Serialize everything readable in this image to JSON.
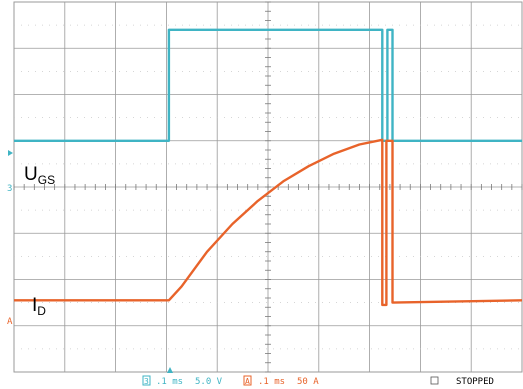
{
  "chart_data": {
    "type": "line",
    "grid": true,
    "x_divisions": 10,
    "y_divisions": 8,
    "xlim": [
      0,
      10
    ],
    "ylim": [
      0,
      8
    ],
    "series": [
      {
        "name": "U_GS",
        "label_main": "U",
        "label_sub": "GS",
        "color": "#3fb4c4",
        "channel_marker": "3",
        "points": [
          [
            0,
            5.0
          ],
          [
            3.05,
            5.0
          ],
          [
            3.05,
            7.4
          ],
          [
            7.25,
            7.4
          ],
          [
            7.25,
            5.0
          ],
          [
            7.35,
            5.0
          ],
          [
            7.35,
            7.4
          ],
          [
            7.45,
            7.4
          ],
          [
            7.45,
            5.0
          ],
          [
            10,
            5.0
          ]
        ]
      },
      {
        "name": "I_D",
        "label_main": "I",
        "label_sub": "D",
        "color": "#e8632a",
        "channel_marker": "A",
        "points": [
          [
            0,
            1.55
          ],
          [
            3.05,
            1.55
          ],
          [
            3.3,
            1.85
          ],
          [
            3.8,
            2.6
          ],
          [
            4.3,
            3.2
          ],
          [
            4.8,
            3.7
          ],
          [
            5.3,
            4.12
          ],
          [
            5.8,
            4.45
          ],
          [
            6.3,
            4.72
          ],
          [
            6.8,
            4.92
          ],
          [
            7.25,
            5.02
          ],
          [
            7.25,
            1.45
          ],
          [
            7.33,
            1.45
          ],
          [
            7.33,
            5.0
          ],
          [
            7.45,
            5.0
          ],
          [
            7.45,
            1.5
          ],
          [
            10,
            1.55
          ]
        ]
      }
    ]
  },
  "footer": {
    "ch3_marker": "3",
    "ch3_scale": ".1 ms",
    "ch3_volt": "5.0 V",
    "chA_marker": "A",
    "chA_scale": ".1 ms",
    "chA_amp": "50 A",
    "status": "STOPPED"
  }
}
